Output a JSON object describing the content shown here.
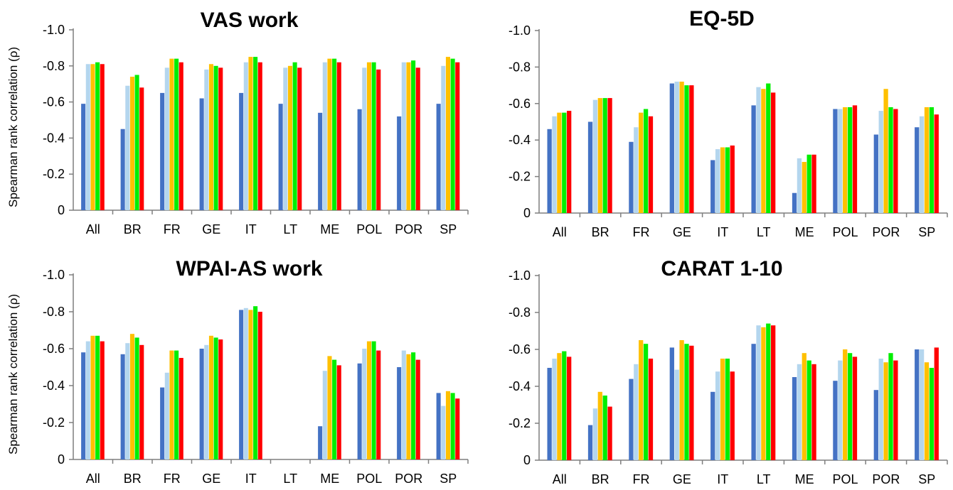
{
  "ylabel": "Spearman rank correlation (ρ)",
  "series_colors": [
    "#4472c4",
    "#b4d6ee",
    "#ffc000",
    "#00ee00",
    "#ff0000"
  ],
  "y_ticks": [
    "0",
    "-0.2",
    "-0.4",
    "-0.6",
    "-0.8",
    "-1.0"
  ],
  "chart_data": [
    {
      "type": "bar",
      "title": "VAS work",
      "ylabel": "Spearman rank correlation (ρ)",
      "ylim": [
        0,
        -1.0
      ],
      "categories": [
        "All",
        "BR",
        "FR",
        "GE",
        "IT",
        "LT",
        "ME",
        "POL",
        "POR",
        "SP"
      ],
      "series": [
        {
          "values": [
            -0.59,
            -0.45,
            -0.65,
            -0.62,
            -0.65,
            -0.59,
            -0.54,
            -0.56,
            -0.52,
            -0.59
          ]
        },
        {
          "values": [
            -0.81,
            -0.69,
            -0.79,
            -0.78,
            -0.82,
            -0.79,
            -0.82,
            -0.79,
            -0.82,
            -0.8
          ]
        },
        {
          "values": [
            -0.81,
            -0.74,
            -0.84,
            -0.81,
            -0.85,
            -0.8,
            -0.84,
            -0.82,
            -0.82,
            -0.85
          ]
        },
        {
          "values": [
            -0.82,
            -0.75,
            -0.84,
            -0.8,
            -0.85,
            -0.82,
            -0.84,
            -0.82,
            -0.83,
            -0.84
          ]
        },
        {
          "values": [
            -0.81,
            -0.68,
            -0.82,
            -0.79,
            -0.82,
            -0.79,
            -0.82,
            -0.78,
            -0.79,
            -0.82
          ]
        }
      ]
    },
    {
      "type": "bar",
      "title": "EQ-5D",
      "ylabel": "",
      "ylim": [
        0,
        -1.0
      ],
      "categories": [
        "All",
        "BR",
        "FR",
        "GE",
        "IT",
        "LT",
        "ME",
        "POL",
        "POR",
        "SP"
      ],
      "series": [
        {
          "values": [
            -0.46,
            -0.5,
            -0.39,
            -0.71,
            -0.29,
            -0.59,
            -0.11,
            -0.57,
            -0.43,
            -0.47
          ]
        },
        {
          "values": [
            -0.53,
            -0.62,
            -0.47,
            -0.72,
            -0.35,
            -0.69,
            -0.3,
            -0.57,
            -0.56,
            -0.53
          ]
        },
        {
          "values": [
            -0.55,
            -0.63,
            -0.55,
            -0.72,
            -0.36,
            -0.68,
            -0.28,
            -0.58,
            -0.68,
            -0.58
          ]
        },
        {
          "values": [
            -0.55,
            -0.63,
            -0.57,
            -0.7,
            -0.36,
            -0.71,
            -0.32,
            -0.58,
            -0.58,
            -0.58
          ]
        },
        {
          "values": [
            -0.56,
            -0.63,
            -0.53,
            -0.7,
            -0.37,
            -0.66,
            -0.32,
            -0.59,
            -0.57,
            -0.54
          ]
        }
      ]
    },
    {
      "type": "bar",
      "title": "WPAI-AS work",
      "ylabel": "Spearman rank correlation (ρ)",
      "ylim": [
        0,
        -1.0
      ],
      "categories": [
        "All",
        "BR",
        "FR",
        "GE",
        "IT",
        "LT",
        "ME",
        "POL",
        "POR",
        "SP"
      ],
      "series": [
        {
          "values": [
            -0.58,
            -0.57,
            -0.39,
            -0.6,
            -0.81,
            0,
            -0.18,
            -0.52,
            -0.5,
            -0.36
          ]
        },
        {
          "values": [
            -0.64,
            -0.63,
            -0.47,
            -0.62,
            -0.82,
            0,
            -0.48,
            -0.6,
            -0.59,
            -0.29
          ]
        },
        {
          "values": [
            -0.67,
            -0.68,
            -0.59,
            -0.67,
            -0.81,
            0,
            -0.56,
            -0.64,
            -0.57,
            -0.37
          ]
        },
        {
          "values": [
            -0.67,
            -0.66,
            -0.59,
            -0.66,
            -0.83,
            0,
            -0.54,
            -0.64,
            -0.58,
            -0.36
          ]
        },
        {
          "values": [
            -0.64,
            -0.62,
            -0.55,
            -0.65,
            -0.8,
            0,
            -0.51,
            -0.59,
            -0.54,
            -0.33
          ]
        }
      ]
    },
    {
      "type": "bar",
      "title": "CARAT 1-10",
      "ylabel": "",
      "ylim": [
        0,
        -1.0
      ],
      "categories": [
        "All",
        "BR",
        "FR",
        "GE",
        "IT",
        "LT",
        "ME",
        "POL",
        "POR",
        "SP"
      ],
      "series": [
        {
          "values": [
            -0.5,
            -0.19,
            -0.44,
            -0.61,
            -0.37,
            -0.63,
            -0.45,
            -0.43,
            -0.38,
            -0.6
          ]
        },
        {
          "values": [
            -0.55,
            -0.28,
            -0.52,
            -0.49,
            -0.48,
            -0.73,
            -0.52,
            -0.54,
            -0.55,
            -0.6
          ]
        },
        {
          "values": [
            -0.58,
            -0.37,
            -0.65,
            -0.65,
            -0.55,
            -0.72,
            -0.58,
            -0.6,
            -0.53,
            -0.53
          ]
        },
        {
          "values": [
            -0.59,
            -0.35,
            -0.63,
            -0.63,
            -0.55,
            -0.74,
            -0.54,
            -0.58,
            -0.58,
            -0.5
          ]
        },
        {
          "values": [
            -0.56,
            -0.29,
            -0.55,
            -0.62,
            -0.48,
            -0.73,
            -0.52,
            -0.56,
            -0.54,
            -0.61
          ]
        }
      ]
    }
  ]
}
